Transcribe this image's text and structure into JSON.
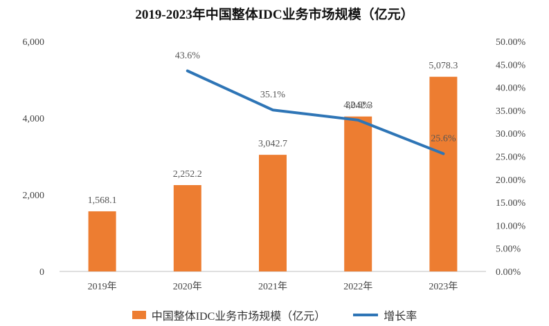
{
  "chart_data": {
    "type": "bar",
    "title": "2019-2023年中国整体IDC业务市场规模（亿元）",
    "categories": [
      "2019年",
      "2020年",
      "2021年",
      "2022年",
      "2023年"
    ],
    "series": [
      {
        "name": "中国整体IDC业务市场规模（亿元）",
        "type": "bar",
        "axis": "left",
        "values": [
          1568.1,
          2252.2,
          3042.7,
          4042.3,
          5078.3
        ],
        "labels": [
          "1,568.1",
          "2,252.2",
          "3,042.7",
          "4,042.3",
          "5,078.3"
        ],
        "color": "#ED7D31"
      },
      {
        "name": "增长率",
        "type": "line",
        "axis": "right",
        "values": [
          null,
          43.6,
          35.1,
          32.9,
          25.6
        ],
        "labels": [
          "",
          "43.6%",
          "35.1%",
          "32.9%",
          "25.6%"
        ],
        "color": "#2E75B6"
      }
    ],
    "left_axis": {
      "min": 0,
      "max": 6000,
      "ticks": [
        0,
        2000,
        4000,
        6000
      ],
      "tick_labels": [
        "0",
        "2,000",
        "4,000",
        "6,000"
      ]
    },
    "right_axis": {
      "min": 0,
      "max": 50,
      "ticks": [
        0,
        5,
        10,
        15,
        20,
        25,
        30,
        35,
        40,
        45,
        50
      ],
      "tick_labels": [
        "0.00%",
        "5.00%",
        "10.00%",
        "15.00%",
        "20.00%",
        "25.00%",
        "30.00%",
        "35.00%",
        "40.00%",
        "45.00%",
        "50.00%"
      ]
    },
    "grid": false,
    "legend_position": "bottom"
  }
}
